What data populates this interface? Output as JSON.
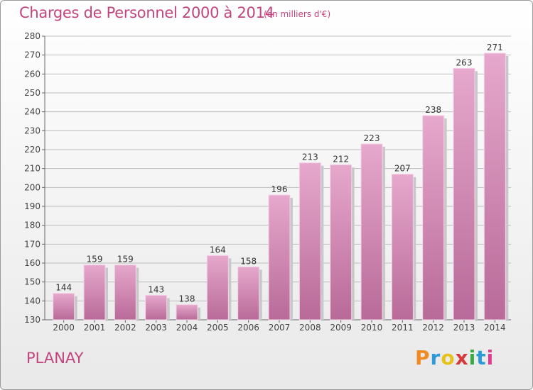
{
  "title": "Charges de Personnel 2000 à 2014",
  "unit_note": "(en milliers d'€)",
  "place": "PLANAY",
  "logo": {
    "text": "Proxiti",
    "colors": [
      "#f08a24",
      "#2c9ad8",
      "#e8c21c",
      "#d63a3a",
      "#3aa845",
      "#2c9ad8",
      "#e23a8e"
    ]
  },
  "chart_data": {
    "type": "bar",
    "title": "Charges de Personnel 2000 à 2014",
    "categories": [
      "2000",
      "2001",
      "2002",
      "2003",
      "2004",
      "2005",
      "2006",
      "2007",
      "2008",
      "2009",
      "2010",
      "2011",
      "2012",
      "2013",
      "2014"
    ],
    "values": [
      144,
      159,
      159,
      143,
      138,
      164,
      158,
      196,
      213,
      212,
      223,
      207,
      238,
      263,
      271
    ],
    "ylim": [
      130,
      280
    ],
    "yticks": [
      130,
      140,
      150,
      160,
      170,
      180,
      190,
      200,
      210,
      220,
      230,
      240,
      250,
      260,
      270,
      280
    ],
    "grid": true,
    "bar_color": "#d98ab8"
  }
}
